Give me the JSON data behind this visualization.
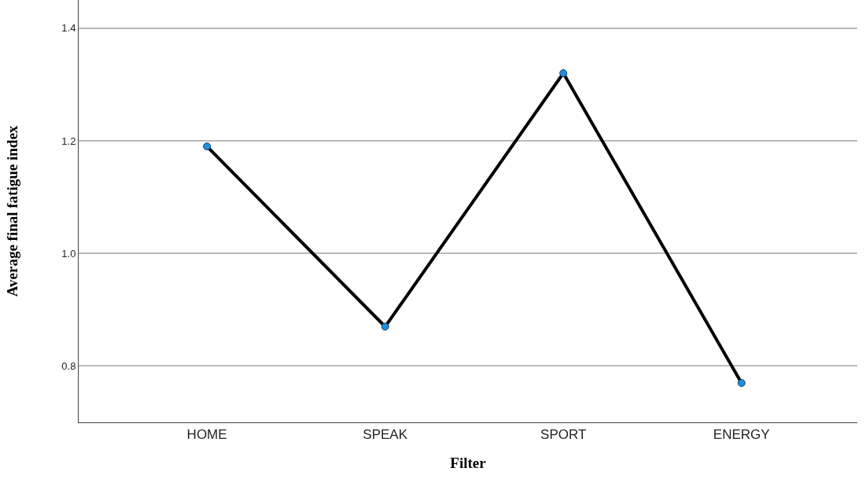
{
  "chart_data": {
    "type": "line",
    "xlabel": "Filter",
    "ylabel": "Average final fatigue index",
    "categories": [
      "HOME",
      "SPEAK",
      "SPORT",
      "ENERGY"
    ],
    "series": [
      {
        "color": "#1f8fe0",
        "values": [
          1.19,
          0.87,
          1.32,
          0.77
        ]
      }
    ],
    "ylim": [
      0.7,
      1.45
    ],
    "yticks": [
      {
        "value": 0.8,
        "label": "0.8"
      },
      {
        "value": 1.0,
        "label": "1.0"
      },
      {
        "value": 1.2,
        "label": "1.2"
      },
      {
        "value": 1.4,
        "label": "1.4"
      }
    ],
    "grid": "y",
    "marker": "circle",
    "line_style": "solid"
  }
}
